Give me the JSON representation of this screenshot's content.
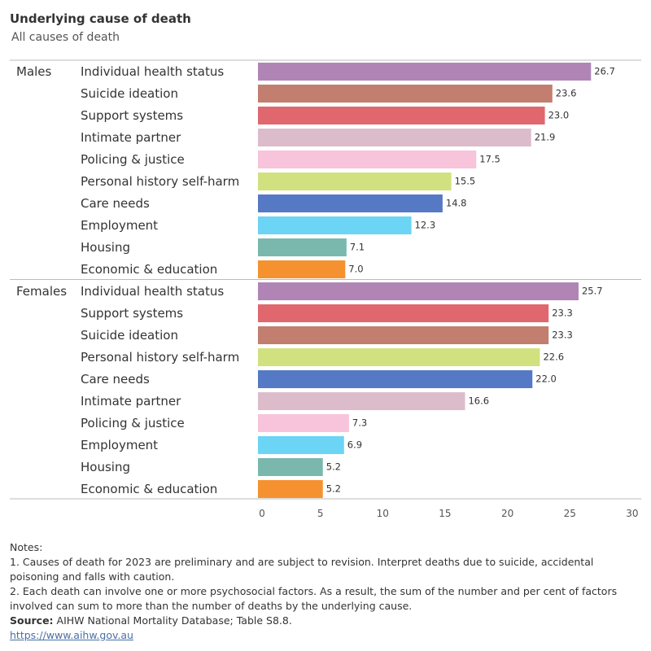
{
  "header": {
    "title": "Underlying cause of death",
    "subtitle": "All causes of death"
  },
  "chart_data": {
    "type": "bar",
    "orientation": "horizontal",
    "xlim": [
      0,
      30
    ],
    "xticks": [
      0,
      5,
      10,
      15,
      20,
      25,
      30
    ],
    "grid": false,
    "groups": [
      {
        "name": "Males",
        "bars": [
          {
            "label": "Individual health status",
            "value": 26.7,
            "color": "#b085b5"
          },
          {
            "label": "Suicide ideation",
            "value": 23.6,
            "color": "#c27e6e"
          },
          {
            "label": "Support systems",
            "value": 23.0,
            "color": "#e0676d"
          },
          {
            "label": "Intimate partner",
            "value": 21.9,
            "color": "#dcbccb"
          },
          {
            "label": "Policing & justice",
            "value": 17.5,
            "color": "#f7c4dc"
          },
          {
            "label": "Personal history self-harm",
            "value": 15.5,
            "color": "#d2e17f"
          },
          {
            "label": "Care needs",
            "value": 14.8,
            "color": "#5579c4"
          },
          {
            "label": "Employment",
            "value": 12.3,
            "color": "#6cd4f5"
          },
          {
            "label": "Housing",
            "value": 7.1,
            "color": "#7ab8ae"
          },
          {
            "label": "Economic & education",
            "value": 7.0,
            "color": "#f5922f"
          }
        ]
      },
      {
        "name": "Females",
        "bars": [
          {
            "label": "Individual health status",
            "value": 25.7,
            "color": "#b085b5"
          },
          {
            "label": "Support systems",
            "value": 23.3,
            "color": "#e0676d"
          },
          {
            "label": "Suicide ideation",
            "value": 23.3,
            "color": "#c27e6e"
          },
          {
            "label": "Personal history self-harm",
            "value": 22.6,
            "color": "#d2e17f"
          },
          {
            "label": "Care needs",
            "value": 22.0,
            "color": "#5579c4"
          },
          {
            "label": "Intimate partner",
            "value": 16.6,
            "color": "#dcbccb"
          },
          {
            "label": "Policing & justice",
            "value": 7.3,
            "color": "#f7c4dc"
          },
          {
            "label": "Employment",
            "value": 6.9,
            "color": "#6cd4f5"
          },
          {
            "label": "Housing",
            "value": 5.2,
            "color": "#7ab8ae"
          },
          {
            "label": "Economic & education",
            "value": 5.2,
            "color": "#f5922f"
          }
        ]
      }
    ]
  },
  "notes": {
    "heading": "Notes:",
    "note1": "1. Causes of death for 2023 are preliminary and are subject to revision. Interpret deaths due to suicide, accidental poisoning and falls with caution.",
    "note2": "2. Each death can involve one or more psychosocial factors. As a result, the sum of the number and per cent of factors involved can sum to more than the number of deaths by the underlying cause.",
    "source_label": "Source:",
    "source_text": " AIHW National Mortality Database; Table S8.8.",
    "link": "https://www.aihw.gov.au"
  }
}
